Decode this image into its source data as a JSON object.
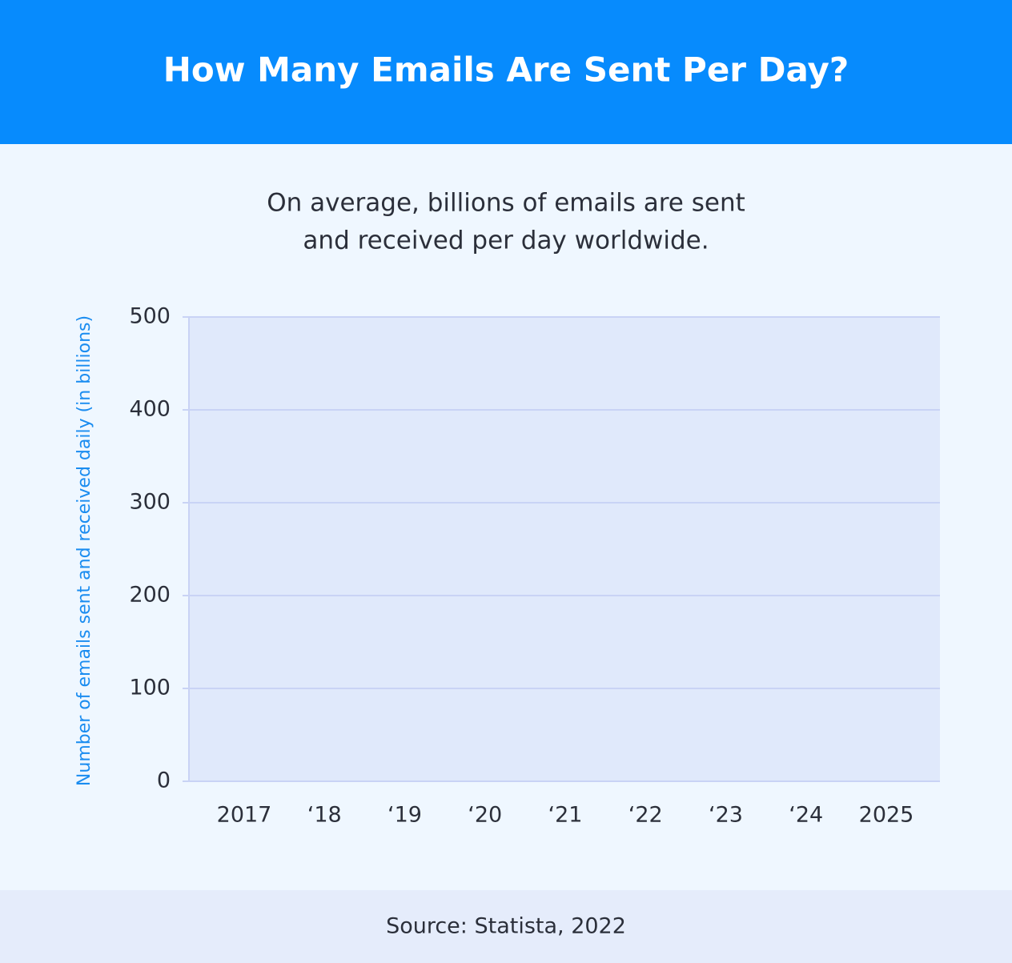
{
  "chart_data": {
    "type": "bar",
    "title": "How Many Emails Are Sent Per Day?",
    "subtitle": [
      "On average, billions of emails are sent",
      "and received per day worldwide."
    ],
    "y_label": "Number of emails sent and received daily (in billions)",
    "categories": [
      "2017",
      "‘18",
      "‘19",
      "‘20",
      "‘21",
      "‘22",
      "‘23",
      "‘24",
      "2025"
    ],
    "ylim": [
      0,
      500
    ],
    "yticks": [
      0,
      100,
      200,
      300,
      400,
      500
    ],
    "grid": true,
    "source": "Source: Statista, 2022"
  }
}
